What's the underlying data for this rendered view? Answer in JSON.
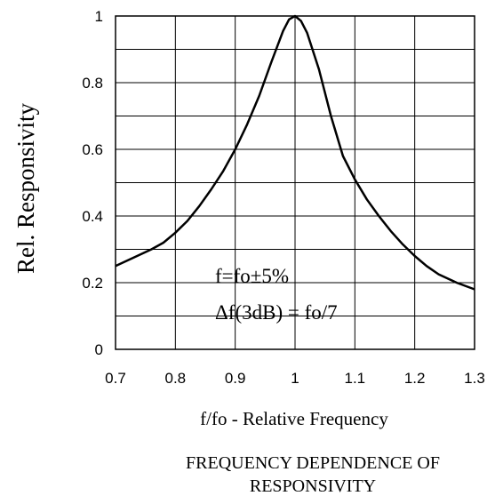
{
  "chart_data": {
    "type": "line",
    "title": "FREQUENCY DEPENDENCE OF\nRESPONSIVITY",
    "xlabel": "f/fo - Relative Frequency",
    "ylabel": "Rel. Responsivity",
    "xlim": [
      0.7,
      1.3
    ],
    "ylim": [
      0,
      1
    ],
    "x_ticks": [
      0.7,
      0.8,
      0.9,
      1.0,
      1.1,
      1.2,
      1.3
    ],
    "x_tick_labels": [
      "0.7",
      "0.8",
      "0.9",
      "1",
      "1.1",
      "1.2",
      "1.3"
    ],
    "y_ticks": [
      0,
      0.2,
      0.4,
      0.6,
      0.8,
      1.0
    ],
    "y_tick_labels": [
      "0",
      "0.2",
      "0.4",
      "0.6",
      "0.8",
      "1"
    ],
    "grid": true,
    "annotations": [
      "f=fo±5%",
      "Δf(3dB) = fo/7"
    ],
    "series": [
      {
        "x": [
          0.7,
          0.73,
          0.76,
          0.78,
          0.8,
          0.82,
          0.84,
          0.86,
          0.88,
          0.9,
          0.92,
          0.94,
          0.96,
          0.98,
          0.99,
          1.0,
          1.01,
          1.02,
          1.04,
          1.06,
          1.08,
          1.1,
          1.12,
          1.14,
          1.16,
          1.18,
          1.2,
          1.22,
          1.24,
          1.27,
          1.3
        ],
        "y": [
          0.25,
          0.275,
          0.3,
          0.32,
          0.35,
          0.385,
          0.43,
          0.48,
          0.535,
          0.6,
          0.675,
          0.76,
          0.86,
          0.955,
          0.99,
          1.0,
          0.985,
          0.95,
          0.84,
          0.7,
          0.58,
          0.51,
          0.45,
          0.4,
          0.355,
          0.315,
          0.28,
          0.25,
          0.225,
          0.2,
          0.18
        ]
      }
    ]
  }
}
